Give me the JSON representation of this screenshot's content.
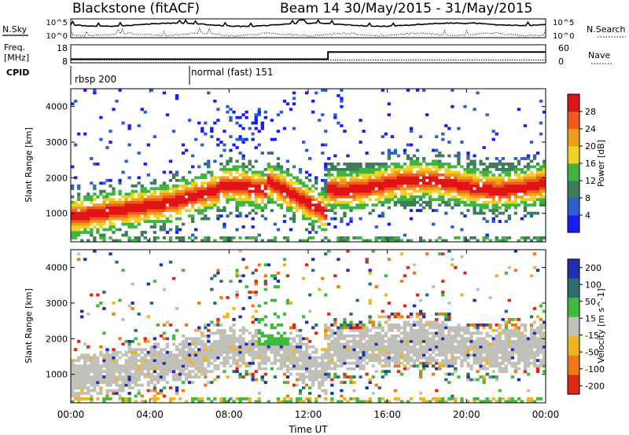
{
  "header": {
    "station": "Blackstone (fitACF)",
    "beam_date": "Beam 14 30/May/2015 - 31/May/2015"
  },
  "sky_panel": {
    "left_label": "N.Sky",
    "right_label": "N.Search",
    "ticks_left": [
      "10^5",
      "10^0"
    ],
    "ticks_right": [
      "10^5",
      "10^0"
    ]
  },
  "freq_panel": {
    "left_label_line1": "Freq.",
    "left_label_line2": "[MHz]",
    "right_label": "Nave",
    "ticks_left": [
      "18",
      "8"
    ],
    "ticks_right": [
      "60",
      "0"
    ],
    "freq_value_before": 10,
    "freq_value_after": 14,
    "switch_hour": 13
  },
  "cpid_panel": {
    "label": "CPID",
    "modes": [
      {
        "name": "rbsp 200",
        "start_hour": 0
      },
      {
        "name": "normal (fast) 151",
        "start_hour": 6
      }
    ]
  },
  "chart_data": [
    {
      "type": "heatmap",
      "name": "power",
      "ylabel": "Slant Range [km]",
      "yticks": [
        1000,
        2000,
        3000,
        4000
      ],
      "ylim": [
        200,
        4500
      ],
      "xlim": [
        0,
        24
      ],
      "colorbar_label": "Power [dB]",
      "colorbar_ticks": [
        "4",
        "8",
        "12",
        "16",
        "20",
        "24",
        "28"
      ],
      "colors": [
        "#1a1aff",
        "#2a5fcf",
        "#3d7d5c",
        "#3fb53f",
        "#f0d21e",
        "#f29c1e",
        "#f05a1e",
        "#e01414"
      ]
    },
    {
      "type": "heatmap",
      "name": "velocity",
      "ylabel": "Slant Range [km]",
      "yticks": [
        1000,
        2000,
        3000,
        4000
      ],
      "ylim": [
        200,
        4500
      ],
      "xlim": [
        0,
        24
      ],
      "colorbar_label": "Velocity [m s^-1]",
      "colorbar_ticks": [
        "200",
        "100",
        "50",
        "15",
        "-15",
        "-50",
        "-100",
        "-200"
      ],
      "colors": [
        "#1e2fb4",
        "#2d6e6e",
        "#3cbb3c",
        "#c0c0b8",
        "#f0b41e",
        "#f07814",
        "#e02814"
      ]
    }
  ],
  "x_axis": {
    "label": "Time UT",
    "ticks": [
      "00:00",
      "04:00",
      "08:00",
      "12:00",
      "16:00",
      "20:00",
      "00:00"
    ]
  }
}
